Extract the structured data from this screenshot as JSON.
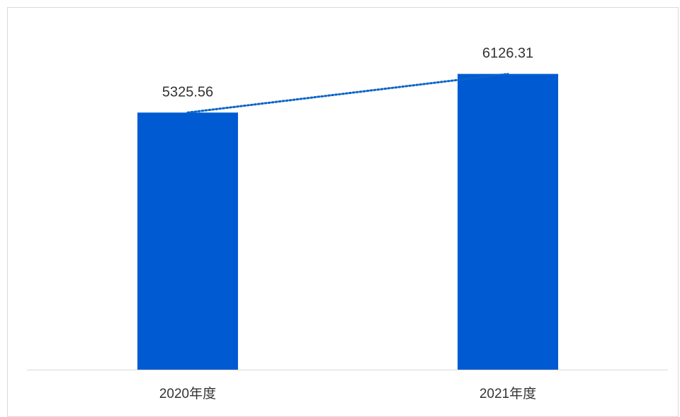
{
  "chart_data": {
    "type": "bar",
    "categories": [
      "2020年度",
      "2021年度"
    ],
    "values": [
      5325.56,
      6126.31
    ],
    "data_labels": [
      "5325.56",
      "6126.31"
    ],
    "trendline": {
      "type": "linear",
      "style": "dotted"
    },
    "ylim": [
      0,
      6500
    ],
    "grid": false,
    "legend": "none",
    "colors": {
      "bar": "#005bd3",
      "trendline": "#0a64c8",
      "axis": "#d9d9d9",
      "text": "#333333"
    }
  }
}
